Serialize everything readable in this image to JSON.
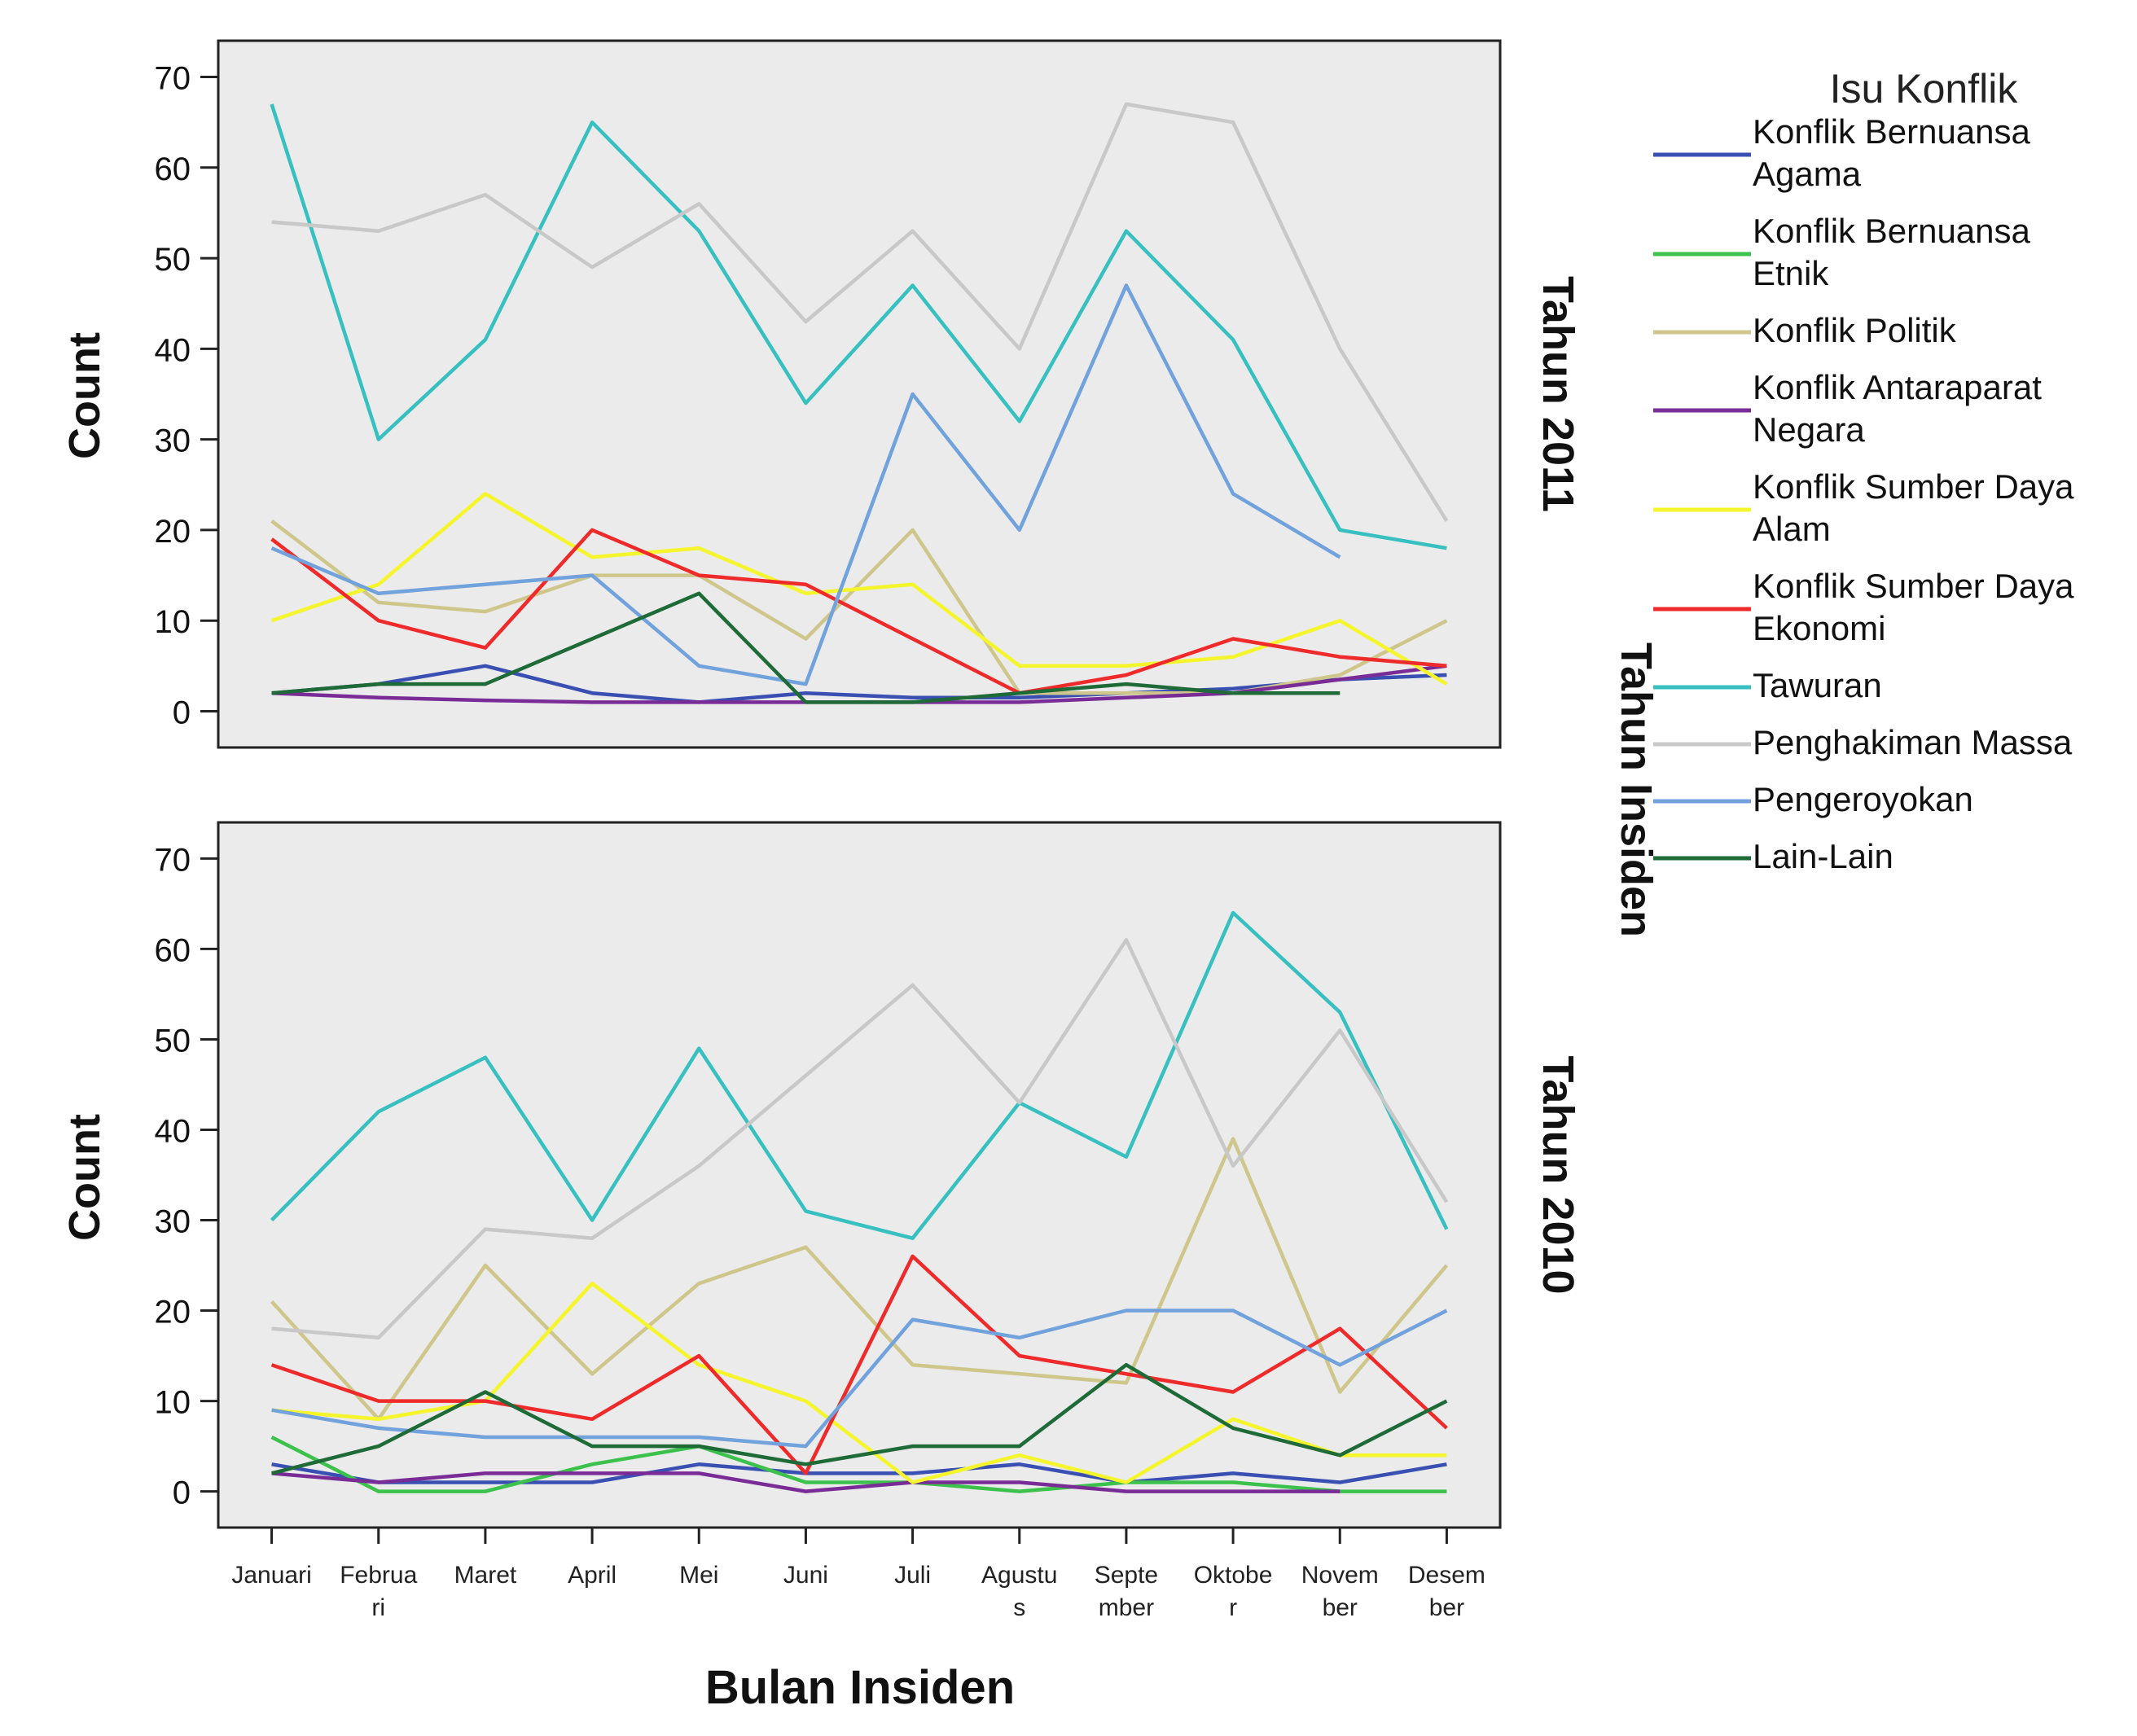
{
  "chart_data": {
    "type": "line",
    "x_title": "Bulan Insiden",
    "y_title": "Count",
    "facet_title": "Tahun Insiden",
    "legend_title": "Isu Konflik",
    "legend_placement": "right",
    "categories": [
      [
        "Januari"
      ],
      [
        "Februa",
        "ri"
      ],
      [
        "Maret"
      ],
      [
        "April"
      ],
      [
        "Mei"
      ],
      [
        "Juni"
      ],
      [
        "Juli"
      ],
      [
        "Agustu",
        "s"
      ],
      [
        "Septe",
        "mber"
      ],
      [
        "Oktobe",
        "r"
      ],
      [
        "Novem",
        "ber"
      ],
      [
        "Desem",
        "ber"
      ]
    ],
    "y_ticks": [
      "0",
      "10",
      "20",
      "30",
      "40",
      "50",
      "60",
      "70"
    ],
    "ylim": [
      -4,
      74
    ],
    "background": "#ebebeb",
    "series_info": [
      {
        "name": [
          "Konflik Bernuansa",
          "Agama"
        ],
        "color": "#3a4fb2"
      },
      {
        "name": [
          "Konflik Bernuansa",
          "Etnik"
        ],
        "color": "#3cc24c"
      },
      {
        "name": [
          "Konflik Politik"
        ],
        "color": "#cfc68c"
      },
      {
        "name": [
          "Konflik Antaraparat",
          "Negara"
        ],
        "color": "#7a2c96"
      },
      {
        "name": [
          "Konflik Sumber Daya",
          "Alam"
        ],
        "color": "#f5f52c"
      },
      {
        "name": [
          "Konflik Sumber Daya",
          "Ekonomi"
        ],
        "color": "#ee2a2a"
      },
      {
        "name": [
          "Tawuran"
        ],
        "color": "#38c0c0"
      },
      {
        "name": [
          "Penghakiman Massa"
        ],
        "color": "#c8c8c8"
      },
      {
        "name": [
          "Pengeroyokan"
        ],
        "color": "#72a2dc"
      },
      {
        "name": [
          "Lain-Lain"
        ],
        "color": "#1e6b38"
      }
    ],
    "panels": [
      {
        "label": "Tahun 2011",
        "values": [
          [
            2,
            3,
            5,
            2,
            1,
            2,
            1.5,
            1.5,
            2,
            2.5,
            3.5,
            4
          ],
          [],
          [
            21,
            12,
            11,
            15,
            15,
            8,
            20,
            2,
            2,
            2,
            4,
            10
          ],
          [
            2,
            1.5,
            1.2,
            1,
            1,
            1,
            1,
            1,
            1.5,
            2,
            3.5,
            5
          ],
          [
            10,
            14,
            24,
            17,
            18,
            13,
            14,
            5,
            5,
            6,
            10,
            3
          ],
          [
            19,
            10,
            7,
            20,
            15,
            14,
            8,
            2,
            4,
            8,
            6,
            5
          ],
          [
            67,
            30,
            41,
            65,
            53,
            34,
            47,
            32,
            53,
            41,
            20,
            18
          ],
          [
            54,
            53,
            57,
            49,
            56,
            43,
            53,
            40,
            67,
            65,
            40,
            21
          ],
          [
            18,
            13,
            14,
            15,
            5,
            3,
            35,
            20,
            47,
            24,
            17,
            null
          ],
          [
            2,
            3,
            3,
            8,
            13,
            1,
            1,
            2,
            3,
            2,
            2,
            null
          ]
        ]
      },
      {
        "label": "Tahun 2010",
        "values": [
          [
            3,
            1,
            1,
            1,
            3,
            2,
            2,
            3,
            1,
            2,
            1,
            3
          ],
          [
            6,
            0,
            0,
            3,
            5,
            1,
            1,
            0,
            1,
            1,
            0,
            0
          ],
          [
            21,
            8,
            25,
            13,
            23,
            27,
            14,
            13,
            12,
            39,
            11,
            25
          ],
          [
            2,
            1,
            2,
            2,
            2,
            0,
            1,
            1,
            0,
            0,
            0,
            null
          ],
          [
            9,
            8,
            10,
            23,
            14,
            10,
            1,
            4,
            1,
            8,
            4,
            4
          ],
          [
            14,
            10,
            10,
            8,
            15,
            2,
            26,
            15,
            13,
            11,
            18,
            7
          ],
          [
            30,
            42,
            48,
            30,
            49,
            31,
            28,
            43,
            37,
            64,
            53,
            29
          ],
          [
            18,
            17,
            29,
            28,
            36,
            46,
            56,
            43,
            61,
            36,
            51,
            32
          ],
          [
            9,
            7,
            6,
            6,
            6,
            5,
            19,
            17,
            20,
            20,
            14,
            20
          ],
          [
            2,
            5,
            11,
            5,
            5,
            3,
            5,
            5,
            14,
            7,
            4,
            10
          ]
        ]
      }
    ]
  }
}
